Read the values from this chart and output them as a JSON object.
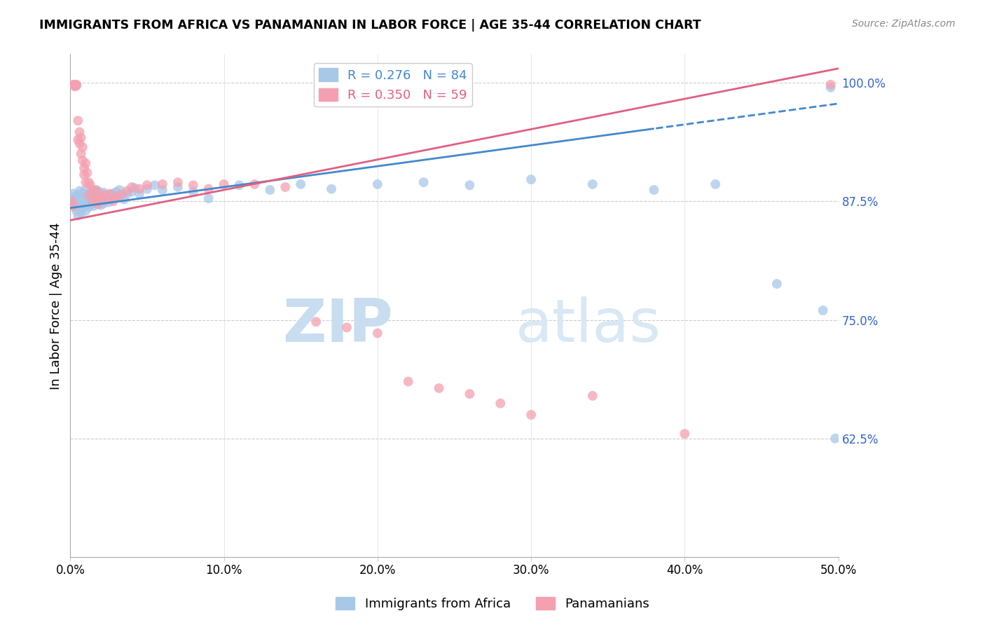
{
  "title": "IMMIGRANTS FROM AFRICA VS PANAMANIAN IN LABOR FORCE | AGE 35-44 CORRELATION CHART",
  "source": "Source: ZipAtlas.com",
  "ylabel": "In Labor Force | Age 35-44",
  "xlim": [
    0.0,
    0.5
  ],
  "ylim": [
    0.5,
    1.03
  ],
  "yticks": [
    0.625,
    0.75,
    0.875,
    1.0
  ],
  "ytick_labels": [
    "62.5%",
    "75.0%",
    "87.5%",
    "100.0%"
  ],
  "xticks": [
    0.0,
    0.1,
    0.2,
    0.3,
    0.4,
    0.5
  ],
  "xtick_labels": [
    "0.0%",
    "10.0%",
    "20.0%",
    "30.0%",
    "40.0%",
    "50.0%"
  ],
  "legend_blue_label": "Immigrants from Africa",
  "legend_pink_label": "Panamanians",
  "blue_R": 0.276,
  "blue_N": 84,
  "pink_R": 0.35,
  "pink_N": 59,
  "blue_color": "#a8c8e8",
  "pink_color": "#f4a0b0",
  "blue_line_color": "#4488cc",
  "pink_line_color": "#e06080",
  "watermark_zip": "ZIP",
  "watermark_atlas": "atlas",
  "blue_line_intercept": 0.868,
  "blue_line_slope": 0.22,
  "pink_line_intercept": 0.855,
  "pink_line_slope": 0.32,
  "blue_scatter_x": [
    0.001,
    0.002,
    0.002,
    0.003,
    0.003,
    0.004,
    0.004,
    0.005,
    0.005,
    0.005,
    0.006,
    0.006,
    0.006,
    0.007,
    0.007,
    0.007,
    0.008,
    0.008,
    0.008,
    0.009,
    0.009,
    0.01,
    0.01,
    0.01,
    0.011,
    0.011,
    0.012,
    0.012,
    0.013,
    0.013,
    0.014,
    0.014,
    0.015,
    0.015,
    0.016,
    0.016,
    0.017,
    0.017,
    0.018,
    0.018,
    0.019,
    0.019,
    0.02,
    0.02,
    0.021,
    0.022,
    0.022,
    0.023,
    0.024,
    0.025,
    0.026,
    0.027,
    0.028,
    0.029,
    0.03,
    0.031,
    0.032,
    0.034,
    0.035,
    0.037,
    0.04,
    0.042,
    0.045,
    0.05,
    0.055,
    0.06,
    0.07,
    0.08,
    0.09,
    0.11,
    0.13,
    0.15,
    0.17,
    0.2,
    0.23,
    0.26,
    0.3,
    0.34,
    0.38,
    0.42,
    0.46,
    0.49,
    0.495,
    0.498
  ],
  "blue_scatter_y": [
    0.878,
    0.872,
    0.883,
    0.869,
    0.88,
    0.875,
    0.865,
    0.86,
    0.872,
    0.882,
    0.868,
    0.877,
    0.886,
    0.871,
    0.88,
    0.863,
    0.875,
    0.869,
    0.884,
    0.872,
    0.877,
    0.865,
    0.878,
    0.887,
    0.873,
    0.882,
    0.869,
    0.878,
    0.872,
    0.881,
    0.876,
    0.886,
    0.87,
    0.879,
    0.873,
    0.882,
    0.877,
    0.887,
    0.881,
    0.872,
    0.876,
    0.885,
    0.871,
    0.88,
    0.875,
    0.884,
    0.873,
    0.88,
    0.878,
    0.874,
    0.882,
    0.877,
    0.883,
    0.879,
    0.885,
    0.881,
    0.887,
    0.882,
    0.877,
    0.883,
    0.885,
    0.889,
    0.883,
    0.888,
    0.892,
    0.887,
    0.89,
    0.885,
    0.878,
    0.892,
    0.887,
    0.893,
    0.888,
    0.893,
    0.895,
    0.892,
    0.898,
    0.893,
    0.887,
    0.893,
    0.788,
    0.76,
    0.995,
    0.625
  ],
  "pink_scatter_x": [
    0.001,
    0.002,
    0.002,
    0.003,
    0.003,
    0.003,
    0.004,
    0.004,
    0.005,
    0.005,
    0.006,
    0.006,
    0.007,
    0.007,
    0.008,
    0.008,
    0.009,
    0.009,
    0.01,
    0.01,
    0.011,
    0.012,
    0.012,
    0.013,
    0.014,
    0.015,
    0.016,
    0.017,
    0.018,
    0.019,
    0.02,
    0.022,
    0.024,
    0.026,
    0.028,
    0.03,
    0.033,
    0.037,
    0.04,
    0.045,
    0.05,
    0.06,
    0.07,
    0.08,
    0.09,
    0.1,
    0.12,
    0.14,
    0.16,
    0.18,
    0.2,
    0.22,
    0.24,
    0.26,
    0.28,
    0.3,
    0.34,
    0.4,
    0.495
  ],
  "pink_scatter_y": [
    0.875,
    0.87,
    0.998,
    0.997,
    0.998,
    0.996,
    0.997,
    0.998,
    0.94,
    0.96,
    0.948,
    0.936,
    0.942,
    0.925,
    0.932,
    0.918,
    0.91,
    0.903,
    0.915,
    0.895,
    0.905,
    0.895,
    0.882,
    0.892,
    0.876,
    0.887,
    0.879,
    0.886,
    0.872,
    0.88,
    0.876,
    0.882,
    0.877,
    0.883,
    0.875,
    0.879,
    0.882,
    0.886,
    0.89,
    0.888,
    0.892,
    0.893,
    0.895,
    0.892,
    0.888,
    0.893,
    0.893,
    0.89,
    0.748,
    0.742,
    0.736,
    0.685,
    0.678,
    0.672,
    0.662,
    0.65,
    0.67,
    0.63,
    0.998
  ]
}
